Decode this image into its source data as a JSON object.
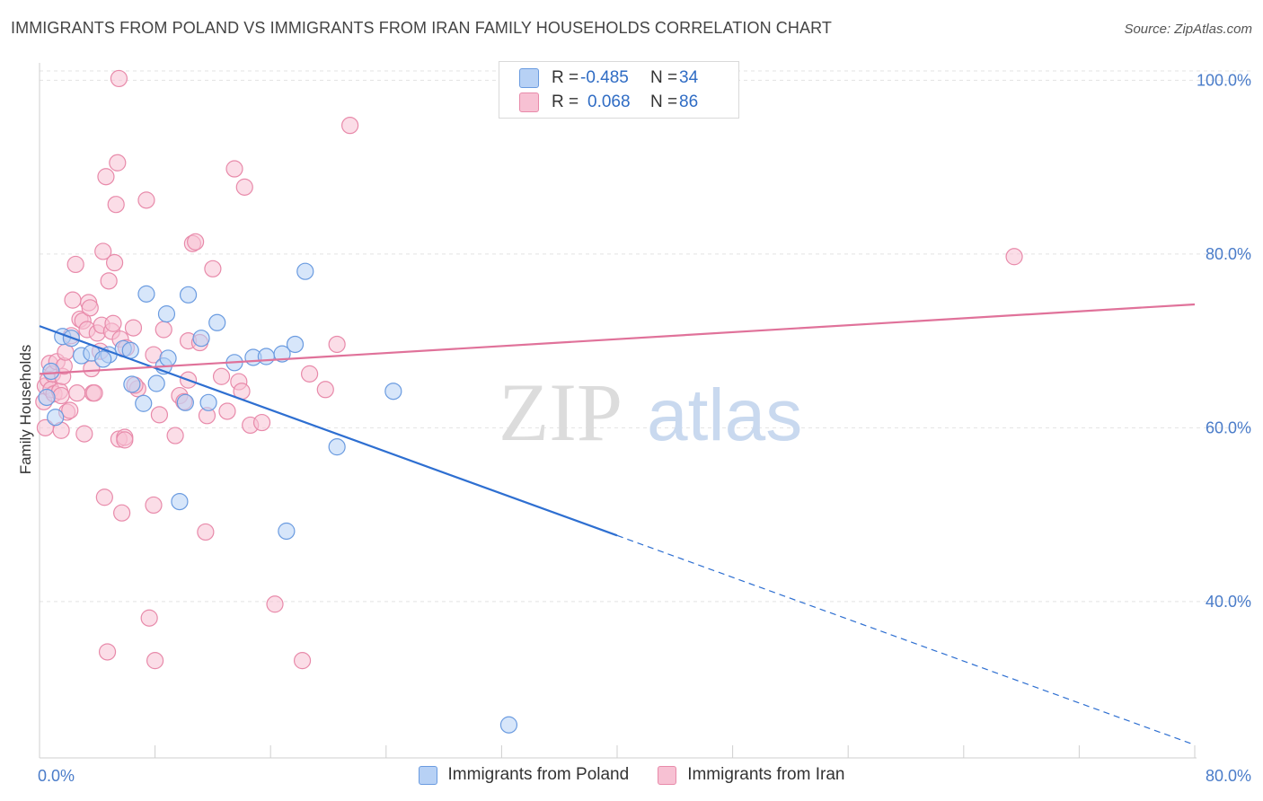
{
  "header": {
    "title": "IMMIGRANTS FROM POLAND VS IMMIGRANTS FROM IRAN FAMILY HOUSEHOLDS CORRELATION CHART",
    "source": "Source: ZipAtlas.com"
  },
  "watermark": {
    "zip": "ZIP",
    "atlas": "atlas"
  },
  "legend": {
    "r_label": "R =",
    "n_label": "N =",
    "poland": {
      "r": "-0.485",
      "n": "34"
    },
    "iran": {
      "r": "0.068",
      "n": "86"
    }
  },
  "colors": {
    "poland_fill": "#b7d1f5",
    "poland_stroke": "#6a9be0",
    "poland_line": "#2e6fd1",
    "iran_fill": "#f7c1d3",
    "iran_stroke": "#e88aaa",
    "iran_line": "#e0729a",
    "grid": "#e3e3e3",
    "axis_text": "#4a7cc9"
  },
  "chart_data": {
    "type": "scatter",
    "title": "IMMIGRANTS FROM POLAND VS IMMIGRANTS FROM IRAN FAMILY HOUSEHOLDS CORRELATION CHART",
    "xlabel": "",
    "ylabel": "Family Households",
    "xlim": [
      0,
      80
    ],
    "ylim": [
      22,
      102
    ],
    "x_tick_labels": [
      "0.0%",
      "80.0%"
    ],
    "y_ticks": [
      {
        "value": 40,
        "label": "40.0%"
      },
      {
        "value": 60,
        "label": "60.0%"
      },
      {
        "value": 80,
        "label": "80.0%"
      },
      {
        "value": 100,
        "label": "100.0%"
      }
    ],
    "x_minor_ticks": [
      0,
      8,
      16,
      24,
      32,
      40,
      48,
      56,
      64,
      72,
      80
    ],
    "grid": true,
    "legend_position": "top-center",
    "series": [
      {
        "name": "Immigrants from Poland",
        "r": -0.485,
        "n": 34,
        "points": [
          [
            0.5,
            63.5
          ],
          [
            0.8,
            66.5
          ],
          [
            1.1,
            61.2
          ],
          [
            1.6,
            70.5
          ],
          [
            2.2,
            70.3
          ],
          [
            2.9,
            68.3
          ],
          [
            3.6,
            68.6
          ],
          [
            4.8,
            68.4
          ],
          [
            4.4,
            67.9
          ],
          [
            5.8,
            69.1
          ],
          [
            6.3,
            68.9
          ],
          [
            7.2,
            62.8
          ],
          [
            6.4,
            65.0
          ],
          [
            8.1,
            65.1
          ],
          [
            7.4,
            75.4
          ],
          [
            8.6,
            67.1
          ],
          [
            8.9,
            68.0
          ],
          [
            8.8,
            73.1
          ],
          [
            10.1,
            62.9
          ],
          [
            10.3,
            75.3
          ],
          [
            11.2,
            70.3
          ],
          [
            11.7,
            62.9
          ],
          [
            12.3,
            72.1
          ],
          [
            13.5,
            67.5
          ],
          [
            14.8,
            68.1
          ],
          [
            15.7,
            68.2
          ],
          [
            16.8,
            68.5
          ],
          [
            17.7,
            69.6
          ],
          [
            18.4,
            78.0
          ],
          [
            20.6,
            57.8
          ],
          [
            24.5,
            64.2
          ],
          [
            9.7,
            51.5
          ],
          [
            17.1,
            48.1
          ],
          [
            32.5,
            25.8
          ]
        ],
        "trend": {
          "x0": 0,
          "y0": 71.7,
          "x_solid_end": 40,
          "x1": 80,
          "y1": 23.5
        }
      },
      {
        "name": "Immigrants from Iran",
        "r": 0.068,
        "n": 86,
        "points": [
          [
            0.3,
            63.0
          ],
          [
            0.4,
            64.8
          ],
          [
            0.6,
            65.5
          ],
          [
            0.7,
            67.4
          ],
          [
            0.8,
            64.4
          ],
          [
            0.9,
            66.2
          ],
          [
            1.0,
            63.9
          ],
          [
            1.2,
            67.6
          ],
          [
            1.4,
            64.2
          ],
          [
            1.5,
            59.7
          ],
          [
            1.5,
            63.7
          ],
          [
            1.6,
            65.9
          ],
          [
            1.7,
            67.1
          ],
          [
            1.8,
            68.7
          ],
          [
            1.9,
            61.8
          ],
          [
            2.1,
            62.0
          ],
          [
            2.2,
            70.6
          ],
          [
            2.3,
            74.7
          ],
          [
            2.6,
            64.0
          ],
          [
            2.5,
            78.8
          ],
          [
            2.8,
            72.5
          ],
          [
            3.0,
            72.3
          ],
          [
            3.1,
            59.3
          ],
          [
            3.3,
            71.3
          ],
          [
            3.4,
            74.4
          ],
          [
            3.5,
            73.8
          ],
          [
            3.6,
            66.8
          ],
          [
            3.7,
            64.0
          ],
          [
            3.8,
            64.0
          ],
          [
            4.0,
            70.9
          ],
          [
            4.2,
            68.8
          ],
          [
            4.4,
            80.3
          ],
          [
            4.3,
            71.8
          ],
          [
            4.5,
            52.0
          ],
          [
            4.6,
            88.9
          ],
          [
            4.7,
            34.2
          ],
          [
            4.8,
            76.9
          ],
          [
            5.0,
            71.1
          ],
          [
            5.1,
            72.0
          ],
          [
            5.2,
            79.0
          ],
          [
            5.3,
            85.7
          ],
          [
            5.4,
            90.5
          ],
          [
            5.5,
            58.7
          ],
          [
            5.6,
            70.2
          ],
          [
            5.7,
            50.2
          ],
          [
            5.9,
            58.9
          ],
          [
            5.9,
            58.6
          ],
          [
            6.0,
            69.2
          ],
          [
            6.5,
            71.5
          ],
          [
            6.8,
            64.5
          ],
          [
            7.4,
            86.2
          ],
          [
            7.6,
            38.1
          ],
          [
            7.9,
            51.1
          ],
          [
            7.9,
            68.4
          ],
          [
            8.0,
            33.2
          ],
          [
            8.3,
            61.5
          ],
          [
            8.6,
            71.3
          ],
          [
            9.4,
            59.1
          ],
          [
            9.7,
            63.7
          ],
          [
            10.0,
            63.0
          ],
          [
            10.3,
            70.0
          ],
          [
            10.6,
            81.2
          ],
          [
            10.8,
            81.4
          ],
          [
            11.1,
            69.8
          ],
          [
            11.5,
            48.0
          ],
          [
            11.6,
            61.4
          ],
          [
            12.0,
            78.3
          ],
          [
            12.6,
            65.9
          ],
          [
            13.0,
            61.9
          ],
          [
            13.5,
            89.8
          ],
          [
            13.8,
            65.3
          ],
          [
            14.0,
            64.2
          ],
          [
            14.2,
            87.7
          ],
          [
            14.6,
            60.3
          ],
          [
            15.4,
            60.6
          ],
          [
            16.3,
            39.7
          ],
          [
            18.2,
            33.2
          ],
          [
            18.7,
            66.2
          ],
          [
            19.8,
            64.4
          ],
          [
            20.6,
            69.6
          ],
          [
            21.5,
            94.8
          ],
          [
            10.3,
            65.5
          ],
          [
            6.6,
            64.9
          ],
          [
            0.4,
            60.0
          ],
          [
            67.5,
            79.7
          ],
          [
            5.5,
            100.2
          ]
        ],
        "trend": {
          "x0": 0,
          "y0": 66.2,
          "x1": 80,
          "y1": 74.2
        }
      }
    ]
  },
  "bottom_legend": {
    "poland": "Immigrants from Poland",
    "iran": "Immigrants from Iran"
  }
}
